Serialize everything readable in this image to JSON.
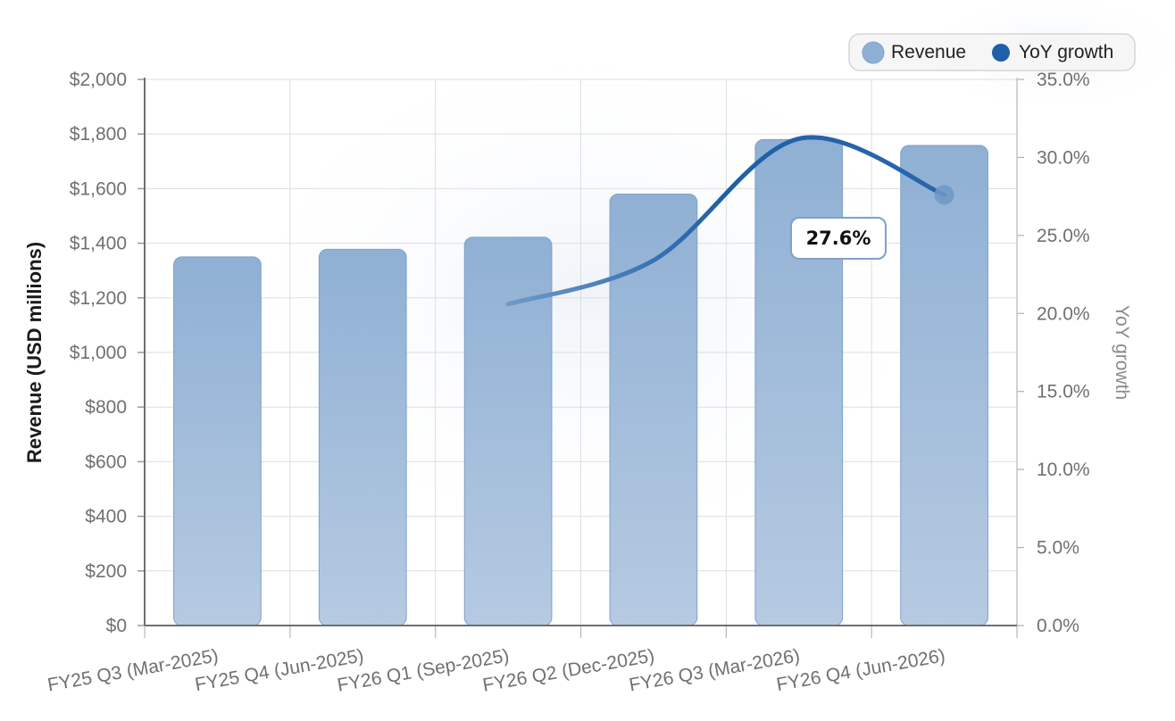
{
  "chart_data": {
    "type": "bar",
    "categories": [
      "FY25 Q3 (Mar-2025)",
      "FY25 Q4 (Jun-2025)",
      "FY26 Q1 (Sep-2025)",
      "FY26 Q2 (Dec-2025)",
      "FY26 Q3 (Mar-2026)",
      "FY26 Q4 (Jun-2026)"
    ],
    "series": [
      {
        "name": "Revenue",
        "type": "bar",
        "axis": "left",
        "color": "#8fb0d4",
        "values": [
          1350,
          1378,
          1422,
          1580,
          1780,
          1758
        ]
      },
      {
        "name": "YoY growth",
        "type": "line",
        "axis": "right",
        "color": "#1f5fa8",
        "values": [
          null,
          null,
          20.6,
          23.4,
          31.2,
          27.6
        ]
      }
    ],
    "title": "",
    "ylabel": "Revenue (USD millions)",
    "y2label": "YoY growth",
    "ylim": [
      0,
      2000
    ],
    "y2lim": [
      0,
      35
    ],
    "yticks": [
      "$0",
      "$200",
      "$400",
      "$600",
      "$800",
      "$1,000",
      "$1,200",
      "$1,400",
      "$1,600",
      "$1,800",
      "$2,000"
    ],
    "y2ticks": [
      "0.0%",
      "5.0%",
      "10.0%",
      "15.0%",
      "20.0%",
      "25.0%",
      "30.0%",
      "35.0%"
    ],
    "annotation": {
      "text": "27.6%",
      "series": "YoY growth",
      "category_index": 5
    },
    "legend_position": "top-right",
    "grid": true
  }
}
